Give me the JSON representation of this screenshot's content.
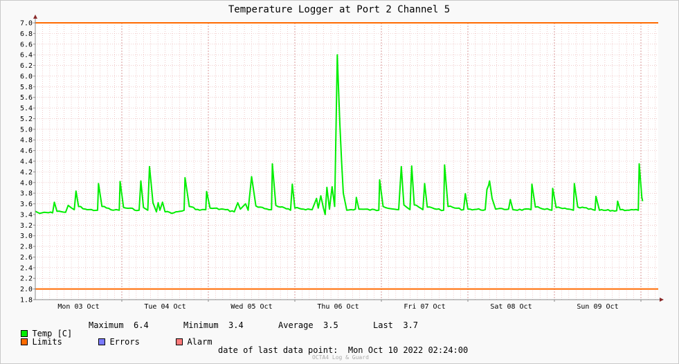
{
  "chart_data": {
    "type": "line",
    "title": "Temperature Logger at Port 2 Channel 5",
    "ylim": [
      1.8,
      7.0
    ],
    "y_major_step": 0.2,
    "x_range": [
      0,
      7.2
    ],
    "x_tick_labels": [
      "Mon 03 Oct",
      "Tue 04 Oct",
      "Wed 05 Oct",
      "Thu 06 Oct",
      "Fri 07 Oct",
      "Sat 08 Oct",
      "Sun 09 Oct"
    ],
    "x_tick_positions": [
      0.5,
      1.5,
      2.5,
      3.5,
      4.5,
      5.5,
      6.5
    ],
    "x_day_boundaries": [
      1,
      2,
      3,
      4,
      5,
      6,
      7
    ],
    "limits": [
      7.0,
      2.0
    ],
    "grid": true,
    "series": [
      {
        "name": "Temp [C]",
        "color": "#00ee00",
        "baseline": 3.48,
        "points": [
          [
            0.0,
            3.46
          ],
          [
            0.05,
            3.42
          ],
          [
            0.1,
            3.44
          ],
          [
            0.2,
            3.43
          ],
          [
            0.22,
            3.63
          ],
          [
            0.25,
            3.46
          ],
          [
            0.35,
            3.44
          ],
          [
            0.38,
            3.57
          ],
          [
            0.42,
            3.52
          ],
          [
            0.45,
            3.49
          ],
          [
            0.47,
            3.84
          ],
          [
            0.5,
            3.55
          ],
          [
            0.6,
            3.49
          ],
          [
            0.72,
            3.48
          ],
          [
            0.73,
            3.98
          ],
          [
            0.77,
            3.55
          ],
          [
            0.9,
            3.48
          ],
          [
            0.97,
            3.48
          ],
          [
            0.98,
            4.02
          ],
          [
            1.02,
            3.53
          ],
          [
            1.2,
            3.48
          ],
          [
            1.22,
            4.03
          ],
          [
            1.25,
            3.53
          ],
          [
            1.3,
            3.48
          ],
          [
            1.32,
            4.3
          ],
          [
            1.36,
            3.62
          ],
          [
            1.4,
            3.45
          ],
          [
            1.42,
            3.62
          ],
          [
            1.44,
            3.48
          ],
          [
            1.47,
            3.63
          ],
          [
            1.5,
            3.45
          ],
          [
            1.6,
            3.43
          ],
          [
            1.72,
            3.48
          ],
          [
            1.73,
            4.09
          ],
          [
            1.78,
            3.55
          ],
          [
            1.9,
            3.48
          ],
          [
            1.97,
            3.49
          ],
          [
            1.98,
            3.83
          ],
          [
            2.02,
            3.52
          ],
          [
            2.2,
            3.49
          ],
          [
            2.3,
            3.45
          ],
          [
            2.34,
            3.62
          ],
          [
            2.37,
            3.5
          ],
          [
            2.43,
            3.6
          ],
          [
            2.46,
            3.48
          ],
          [
            2.5,
            4.11
          ],
          [
            2.55,
            3.56
          ],
          [
            2.7,
            3.49
          ],
          [
            2.73,
            3.49
          ],
          [
            2.74,
            4.35
          ],
          [
            2.78,
            3.57
          ],
          [
            2.95,
            3.48
          ],
          [
            2.97,
            3.97
          ],
          [
            3.0,
            3.52
          ],
          [
            3.2,
            3.49
          ],
          [
            3.25,
            3.7
          ],
          [
            3.27,
            3.52
          ],
          [
            3.3,
            3.75
          ],
          [
            3.33,
            3.52
          ],
          [
            3.35,
            3.4
          ],
          [
            3.37,
            3.91
          ],
          [
            3.4,
            3.5
          ],
          [
            3.43,
            3.92
          ],
          [
            3.46,
            3.55
          ],
          [
            3.47,
            4.5
          ],
          [
            3.49,
            6.4
          ],
          [
            3.52,
            5.1
          ],
          [
            3.54,
            4.4
          ],
          [
            3.56,
            3.8
          ],
          [
            3.6,
            3.48
          ],
          [
            3.7,
            3.5
          ],
          [
            3.71,
            3.72
          ],
          [
            3.74,
            3.5
          ],
          [
            3.97,
            3.48
          ],
          [
            3.98,
            4.05
          ],
          [
            4.02,
            3.55
          ],
          [
            4.2,
            3.49
          ],
          [
            4.23,
            4.3
          ],
          [
            4.26,
            3.58
          ],
          [
            4.33,
            3.49
          ],
          [
            4.35,
            4.31
          ],
          [
            4.38,
            3.58
          ],
          [
            4.48,
            3.49
          ],
          [
            4.5,
            3.98
          ],
          [
            4.53,
            3.54
          ],
          [
            4.72,
            3.48
          ],
          [
            4.73,
            4.33
          ],
          [
            4.77,
            3.55
          ],
          [
            4.95,
            3.49
          ],
          [
            4.97,
            3.79
          ],
          [
            5.0,
            3.5
          ],
          [
            5.2,
            3.49
          ],
          [
            5.22,
            3.87
          ],
          [
            5.24,
            3.95
          ],
          [
            5.25,
            4.03
          ],
          [
            5.28,
            3.7
          ],
          [
            5.32,
            3.5
          ],
          [
            5.47,
            3.5
          ],
          [
            5.49,
            3.68
          ],
          [
            5.52,
            3.49
          ],
          [
            5.73,
            3.49
          ],
          [
            5.74,
            3.97
          ],
          [
            5.78,
            3.54
          ],
          [
            5.97,
            3.48
          ],
          [
            5.98,
            3.89
          ],
          [
            6.02,
            3.53
          ],
          [
            6.22,
            3.48
          ],
          [
            6.23,
            3.98
          ],
          [
            6.27,
            3.54
          ],
          [
            6.47,
            3.48
          ],
          [
            6.48,
            3.74
          ],
          [
            6.52,
            3.48
          ],
          [
            6.72,
            3.47
          ],
          [
            6.73,
            3.65
          ],
          [
            6.76,
            3.49
          ],
          [
            6.97,
            3.48
          ],
          [
            6.98,
            4.35
          ],
          [
            7.01,
            3.72
          ],
          [
            7.02,
            3.65
          ]
        ]
      }
    ]
  },
  "legend": {
    "temp_label": "Temp [C]",
    "maximum_label": "Maximum",
    "maximum_value": "6.4",
    "minimum_label": "Minimum",
    "minimum_value": "3.4",
    "average_label": "Average",
    "average_value": "3.5",
    "last_label": "Last",
    "last_value": "3.7",
    "limits_label": "Limits",
    "errors_label": "Errors",
    "alarm_label": "Alarm",
    "colors": {
      "temp": "#00ee00",
      "limits": "#ff6a00",
      "errors": "#7a7aff",
      "alarm": "#ff7a7a"
    }
  },
  "footer": {
    "last_point_label": "date of last data point:",
    "last_point_value": "Mon Oct 10 2022 02:24:00",
    "watermark": "OCTA4 Log & Guard"
  }
}
